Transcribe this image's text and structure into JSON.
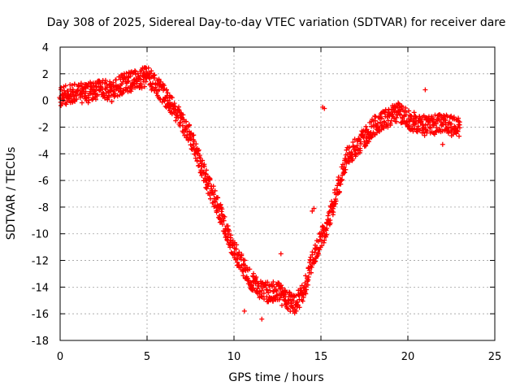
{
  "chart_data": {
    "type": "scatter",
    "title": "Day 308 of 2025, Sidereal Day-to-day VTEC variation (SDTVAR) for receiver dare",
    "xlabel": "GPS time / hours",
    "ylabel": "SDTVAR / TECUs",
    "xlim": [
      0,
      25
    ],
    "ylim": [
      -18,
      4
    ],
    "xticks": [
      0,
      5,
      10,
      15,
      20,
      25
    ],
    "yticks": [
      -18,
      -16,
      -14,
      -12,
      -10,
      -8,
      -6,
      -4,
      -2,
      0,
      2,
      4
    ],
    "grid": true,
    "marker": "+",
    "color": "#ff0000",
    "series": [
      {
        "name": "SDTVAR",
        "trend_x": [
          0.0,
          0.5,
          1.0,
          1.5,
          2.0,
          2.5,
          3.0,
          3.5,
          4.0,
          4.5,
          5.0,
          5.5,
          6.0,
          6.5,
          7.0,
          7.5,
          8.0,
          8.5,
          9.0,
          9.5,
          10.0,
          10.5,
          11.0,
          11.5,
          12.0,
          12.5,
          13.0,
          13.5,
          14.0,
          14.5,
          15.0,
          15.5,
          16.0,
          16.5,
          17.0,
          17.5,
          18.0,
          18.5,
          19.0,
          19.5,
          20.0,
          20.5,
          21.0,
          21.5,
          22.0,
          22.5,
          23.0
        ],
        "trend_y": [
          0.2,
          0.5,
          0.6,
          0.5,
          0.8,
          0.9,
          0.6,
          1.2,
          1.4,
          1.6,
          1.8,
          1.2,
          0.4,
          -0.6,
          -1.5,
          -2.7,
          -4.5,
          -6.2,
          -7.7,
          -9.5,
          -11.2,
          -12.4,
          -13.5,
          -14.2,
          -14.4,
          -14.3,
          -15.0,
          -15.3,
          -14.4,
          -12.0,
          -10.5,
          -8.8,
          -6.5,
          -4.2,
          -3.5,
          -2.8,
          -2.0,
          -1.5,
          -1.2,
          -0.9,
          -1.4,
          -1.7,
          -1.9,
          -1.8,
          -1.7,
          -1.9,
          -2.0
        ],
        "spread": 0.75,
        "outliers": [
          [
            21.0,
            0.8
          ],
          [
            15.2,
            -0.6
          ],
          [
            15.1,
            -0.5
          ],
          [
            14.6,
            -8.1
          ],
          [
            14.5,
            -8.3
          ],
          [
            12.7,
            -11.5
          ],
          [
            11.6,
            -16.4
          ],
          [
            10.6,
            -15.8
          ],
          [
            22.0,
            -3.3
          ]
        ]
      }
    ]
  }
}
